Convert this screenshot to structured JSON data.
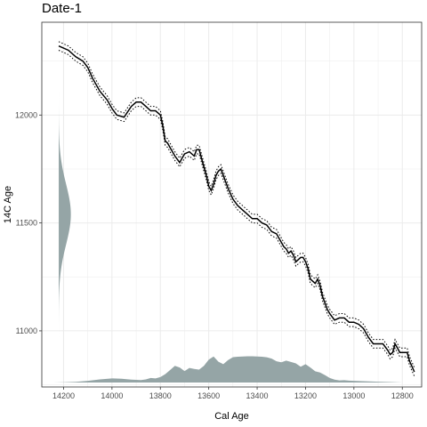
{
  "chart_data": {
    "type": "line",
    "title": "Date-1",
    "xlabel": "Cal Age",
    "ylabel": "14C Age",
    "x_reversed": true,
    "xlim": [
      14290,
      12720
    ],
    "ylim": [
      10740,
      12430
    ],
    "x_ticks": [
      14200,
      14000,
      13800,
      13600,
      13400,
      13200,
      13000,
      12800
    ],
    "y_ticks": [
      11000,
      11500,
      12000
    ],
    "grid": true,
    "colors": {
      "curve": "#000000",
      "density": "#95a5a6",
      "grid": "#ebebeb",
      "panel_border": "#333333"
    },
    "calibration_curve": {
      "x": [
        14220,
        14180,
        14150,
        14120,
        14100,
        14080,
        14050,
        14020,
        14000,
        13980,
        13950,
        13920,
        13900,
        13880,
        13860,
        13840,
        13820,
        13800,
        13790,
        13780,
        13770,
        13760,
        13740,
        13720,
        13710,
        13700,
        13680,
        13660,
        13650,
        13640,
        13630,
        13620,
        13610,
        13600,
        13590,
        13580,
        13570,
        13560,
        13550,
        13540,
        13520,
        13500,
        13480,
        13460,
        13440,
        13420,
        13400,
        13380,
        13360,
        13340,
        13320,
        13300,
        13290,
        13280,
        13270,
        13260,
        13250,
        13240,
        13220,
        13210,
        13200,
        13190,
        13180,
        13160,
        13150,
        13140,
        13130,
        13120,
        13110,
        13100,
        13080,
        13060,
        13040,
        13020,
        13000,
        12980,
        12960,
        12940,
        12920,
        12900,
        12880,
        12860,
        12850,
        12840,
        12830,
        12820,
        12810,
        12800,
        12790,
        12780,
        12770,
        12750
      ],
      "y": [
        12320,
        12300,
        12270,
        12250,
        12220,
        12170,
        12110,
        12070,
        12030,
        12000,
        11990,
        12040,
        12060,
        12060,
        12040,
        12020,
        12020,
        12000,
        11950,
        11880,
        11870,
        11850,
        11810,
        11780,
        11800,
        11820,
        11830,
        11810,
        11840,
        11840,
        11800,
        11760,
        11720,
        11670,
        11650,
        11680,
        11720,
        11740,
        11750,
        11720,
        11660,
        11610,
        11580,
        11560,
        11540,
        11520,
        11520,
        11500,
        11490,
        11460,
        11450,
        11410,
        11390,
        11380,
        11360,
        11370,
        11350,
        11320,
        11340,
        11340,
        11320,
        11290,
        11240,
        11220,
        11240,
        11210,
        11160,
        11130,
        11100,
        11080,
        11050,
        11060,
        11060,
        11040,
        11040,
        11030,
        11010,
        10970,
        10940,
        10940,
        10940,
        10910,
        10890,
        10900,
        10940,
        10920,
        10900,
        10900,
        10900,
        10900,
        10860,
        10810
      ]
    },
    "curve_band_halfwidth": 20,
    "y_density": {
      "mean": 11540,
      "sd": 140,
      "x_base": 14220,
      "x_peak": 14170
    },
    "x_density": {
      "x": [
        14240,
        14200,
        14150,
        14100,
        14050,
        14000,
        13960,
        13920,
        13880,
        13860,
        13840,
        13820,
        13800,
        13780,
        13760,
        13740,
        13720,
        13700,
        13680,
        13660,
        13640,
        13620,
        13600,
        13580,
        13560,
        13540,
        13520,
        13500,
        13480,
        13460,
        13440,
        13420,
        13400,
        13380,
        13360,
        13340,
        13320,
        13300,
        13280,
        13260,
        13240,
        13220,
        13200,
        13180,
        13160,
        13140,
        13120,
        13100,
        13080,
        13060,
        13040,
        13020,
        13000,
        12950,
        12900,
        12850,
        12800
      ],
      "height": [
        0,
        1,
        3,
        8,
        15,
        20,
        18,
        14,
        12,
        15,
        22,
        20,
        26,
        40,
        60,
        80,
        72,
        55,
        70,
        65,
        62,
        80,
        110,
        125,
        100,
        88,
        108,
        122,
        124,
        125,
        126,
        126,
        125,
        124,
        121,
        115,
        102,
        97,
        105,
        99,
        92,
        76,
        88,
        72,
        54,
        48,
        36,
        22,
        14,
        10,
        11,
        9,
        8,
        6,
        4,
        2,
        0
      ]
    }
  }
}
